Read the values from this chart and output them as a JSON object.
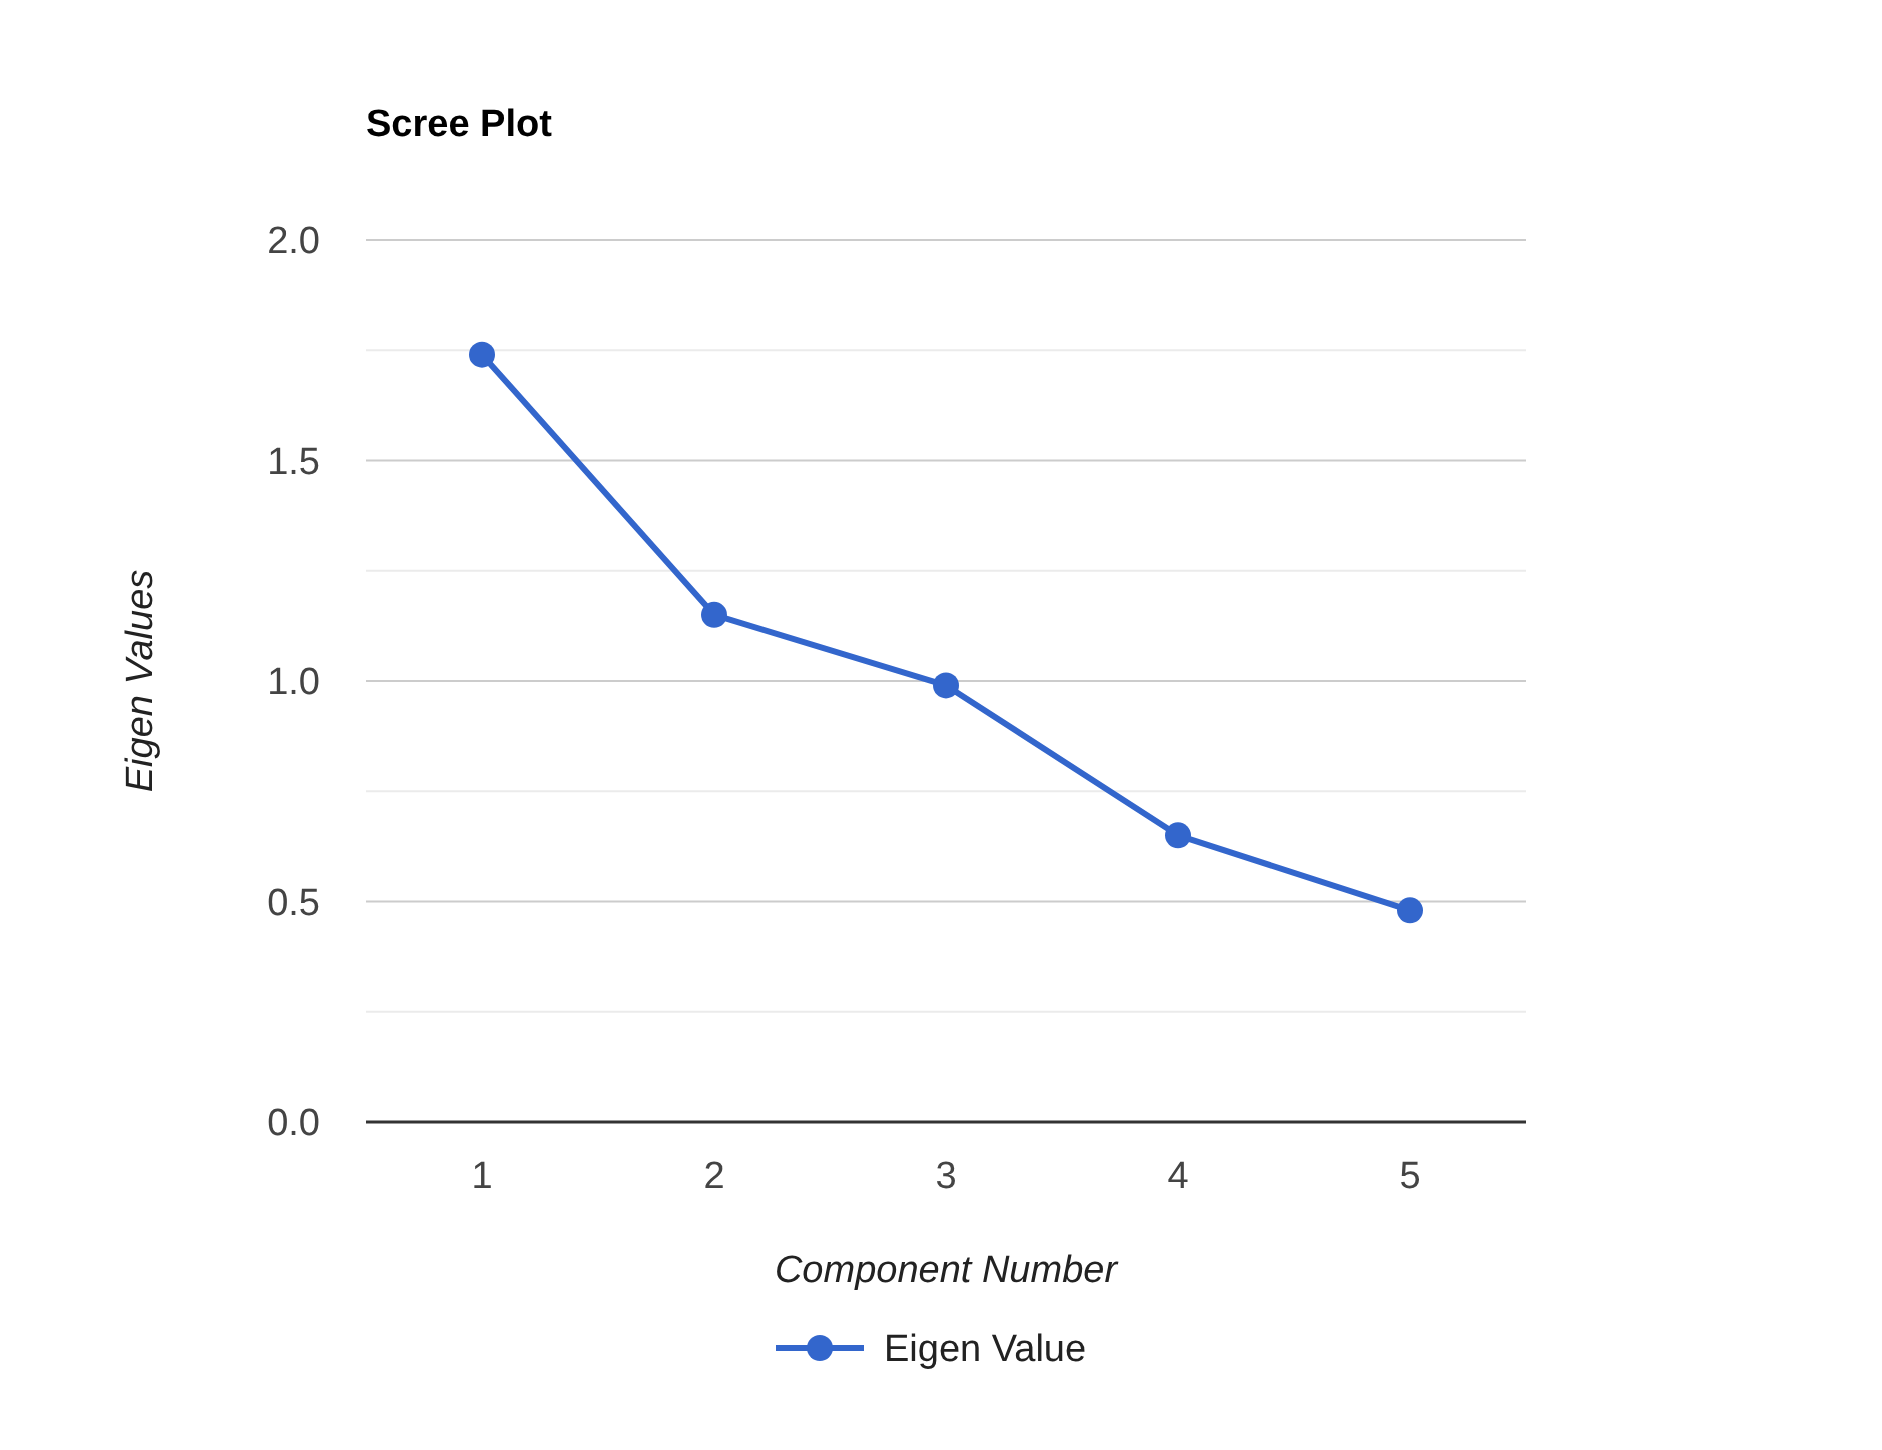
{
  "chart_data": {
    "type": "line",
    "title": "Scree Plot",
    "xlabel": "Component Number",
    "ylabel": "Eigen Values",
    "categories": [
      "1",
      "2",
      "3",
      "4",
      "5"
    ],
    "series": [
      {
        "name": "Eigen Value",
        "color": "#3366cc",
        "values": [
          1.74,
          1.15,
          0.99,
          0.65,
          0.48
        ]
      }
    ],
    "ylim": [
      0,
      2
    ],
    "yticks": [
      {
        "value": 0,
        "label": "0.0"
      },
      {
        "value": 0.25,
        "label": null
      },
      0.5,
      {
        "value": 0.75,
        "label": null
      },
      {
        "value": 1,
        "label": "1.0"
      },
      {
        "value": 1.25,
        "label": null
      },
      1.5,
      {
        "value": 1.75,
        "label": null
      },
      {
        "value": 2,
        "label": "2.0"
      }
    ],
    "grid": "y",
    "legend": "bottom",
    "marker": "circle",
    "line_style": "solid"
  }
}
